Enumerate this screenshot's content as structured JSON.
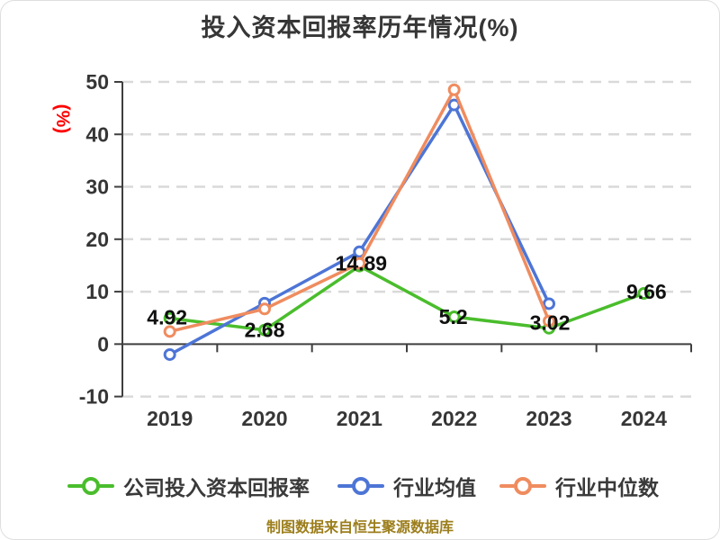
{
  "card": {
    "background": "#ffffff",
    "border_color": "#dedede"
  },
  "title": {
    "text": "投入资本回报率历年情况(%)",
    "color": "#363636"
  },
  "source_note": {
    "text": "制图数据来自恒生聚源数据库",
    "color": "#9c7e1c"
  },
  "chart_data": {
    "type": "line",
    "title": "投入资本回报率历年情况(%)",
    "ylabel": "(%)",
    "ylabel_color": "#ff0000",
    "categories": [
      "2019",
      "2020",
      "2021",
      "2022",
      "2023",
      "2024"
    ],
    "y_ticks": [
      50,
      40,
      30,
      20,
      10,
      0,
      -10
    ],
    "ylim": [
      -10,
      50
    ],
    "grid": "horizontal-dashed",
    "legend_position": "bottom",
    "axis_color": "#3f3f3f",
    "grid_color": "#d9d9d9",
    "tick_label_color": "#363636",
    "data_label_color": "#101010",
    "series": [
      {
        "id": "company-roic",
        "name": "公司投入资本回报率",
        "color": "#4abd2c",
        "values": [
          4.92,
          2.68,
          14.89,
          5.2,
          3.02,
          9.66
        ],
        "data_labels": [
          "4.92",
          "2.68",
          "14.89",
          "5.2",
          "3.02",
          "9.66"
        ],
        "labels_shown": true
      },
      {
        "id": "industry-mean",
        "name": "行业均值",
        "color": "#4d75d6",
        "values": [
          -2.0,
          7.8,
          17.6,
          45.6,
          7.7,
          null
        ],
        "labels_shown": false
      },
      {
        "id": "industry-median",
        "name": "行业中位数",
        "color": "#ef8c5f",
        "values": [
          2.4,
          6.7,
          15.4,
          48.5,
          4.4,
          null
        ],
        "labels_shown": false
      }
    ]
  }
}
